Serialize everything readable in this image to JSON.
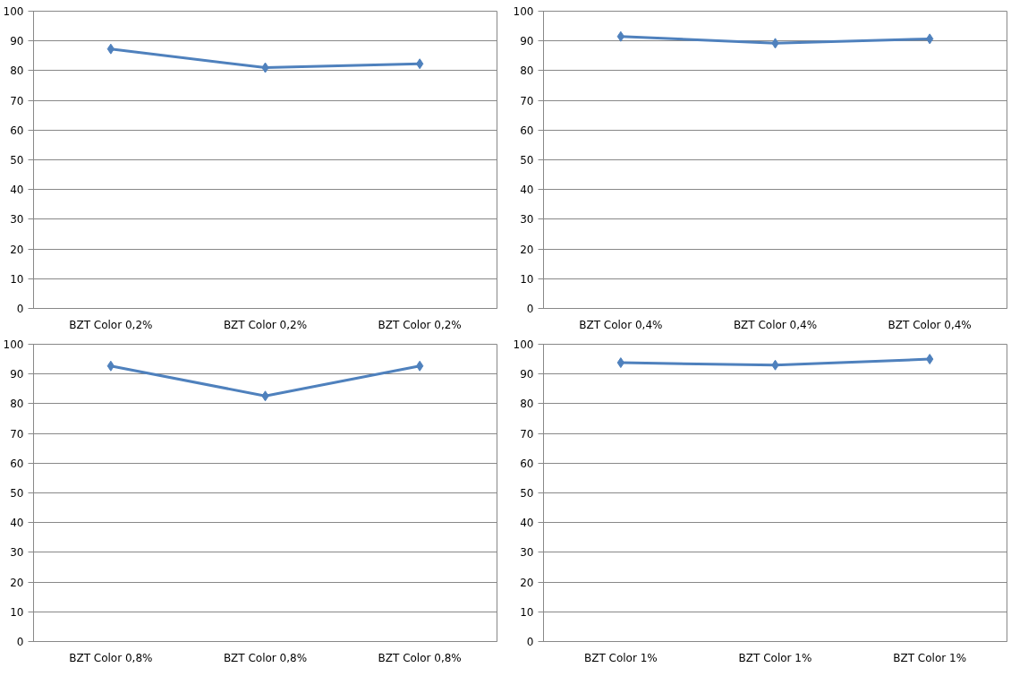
{
  "chart_data": [
    {
      "type": "line",
      "categories": [
        "BZT Color 0,2%",
        "BZT Color 0,2%",
        "BZT Color 0,2%"
      ],
      "values": [
        87.3,
        81.0,
        82.3
      ],
      "color": "#4f81bd",
      "marker": "diamond",
      "ylim": [
        0,
        100
      ],
      "yticks": [
        0,
        10,
        20,
        30,
        40,
        50,
        60,
        70,
        80,
        90,
        100
      ],
      "grid": "y",
      "legend": false
    },
    {
      "type": "line",
      "categories": [
        "BZT Color 0,4%",
        "BZT Color 0,4%",
        "BZT Color 0,4%"
      ],
      "values": [
        91.5,
        89.2,
        90.7
      ],
      "color": "#4f81bd",
      "marker": "diamond",
      "ylim": [
        0,
        100
      ],
      "yticks": [
        0,
        10,
        20,
        30,
        40,
        50,
        60,
        70,
        80,
        90,
        100
      ],
      "grid": "y",
      "legend": false
    },
    {
      "type": "line",
      "categories": [
        "BZT Color 0,8%",
        "BZT Color 0,8%",
        "BZT Color 0,8%"
      ],
      "values": [
        92.7,
        82.6,
        92.7
      ],
      "color": "#4f81bd",
      "marker": "diamond",
      "ylim": [
        0,
        100
      ],
      "yticks": [
        0,
        10,
        20,
        30,
        40,
        50,
        60,
        70,
        80,
        90,
        100
      ],
      "grid": "y",
      "legend": false
    },
    {
      "type": "line",
      "categories": [
        "BZT Color 1%",
        "BZT Color 1%",
        "BZT Color 1%"
      ],
      "values": [
        93.8,
        93.0,
        95.0
      ],
      "color": "#4f81bd",
      "marker": "diamond",
      "ylim": [
        0,
        100
      ],
      "yticks": [
        0,
        10,
        20,
        30,
        40,
        50,
        60,
        70,
        80,
        90,
        100
      ],
      "grid": "y",
      "legend": false
    }
  ]
}
